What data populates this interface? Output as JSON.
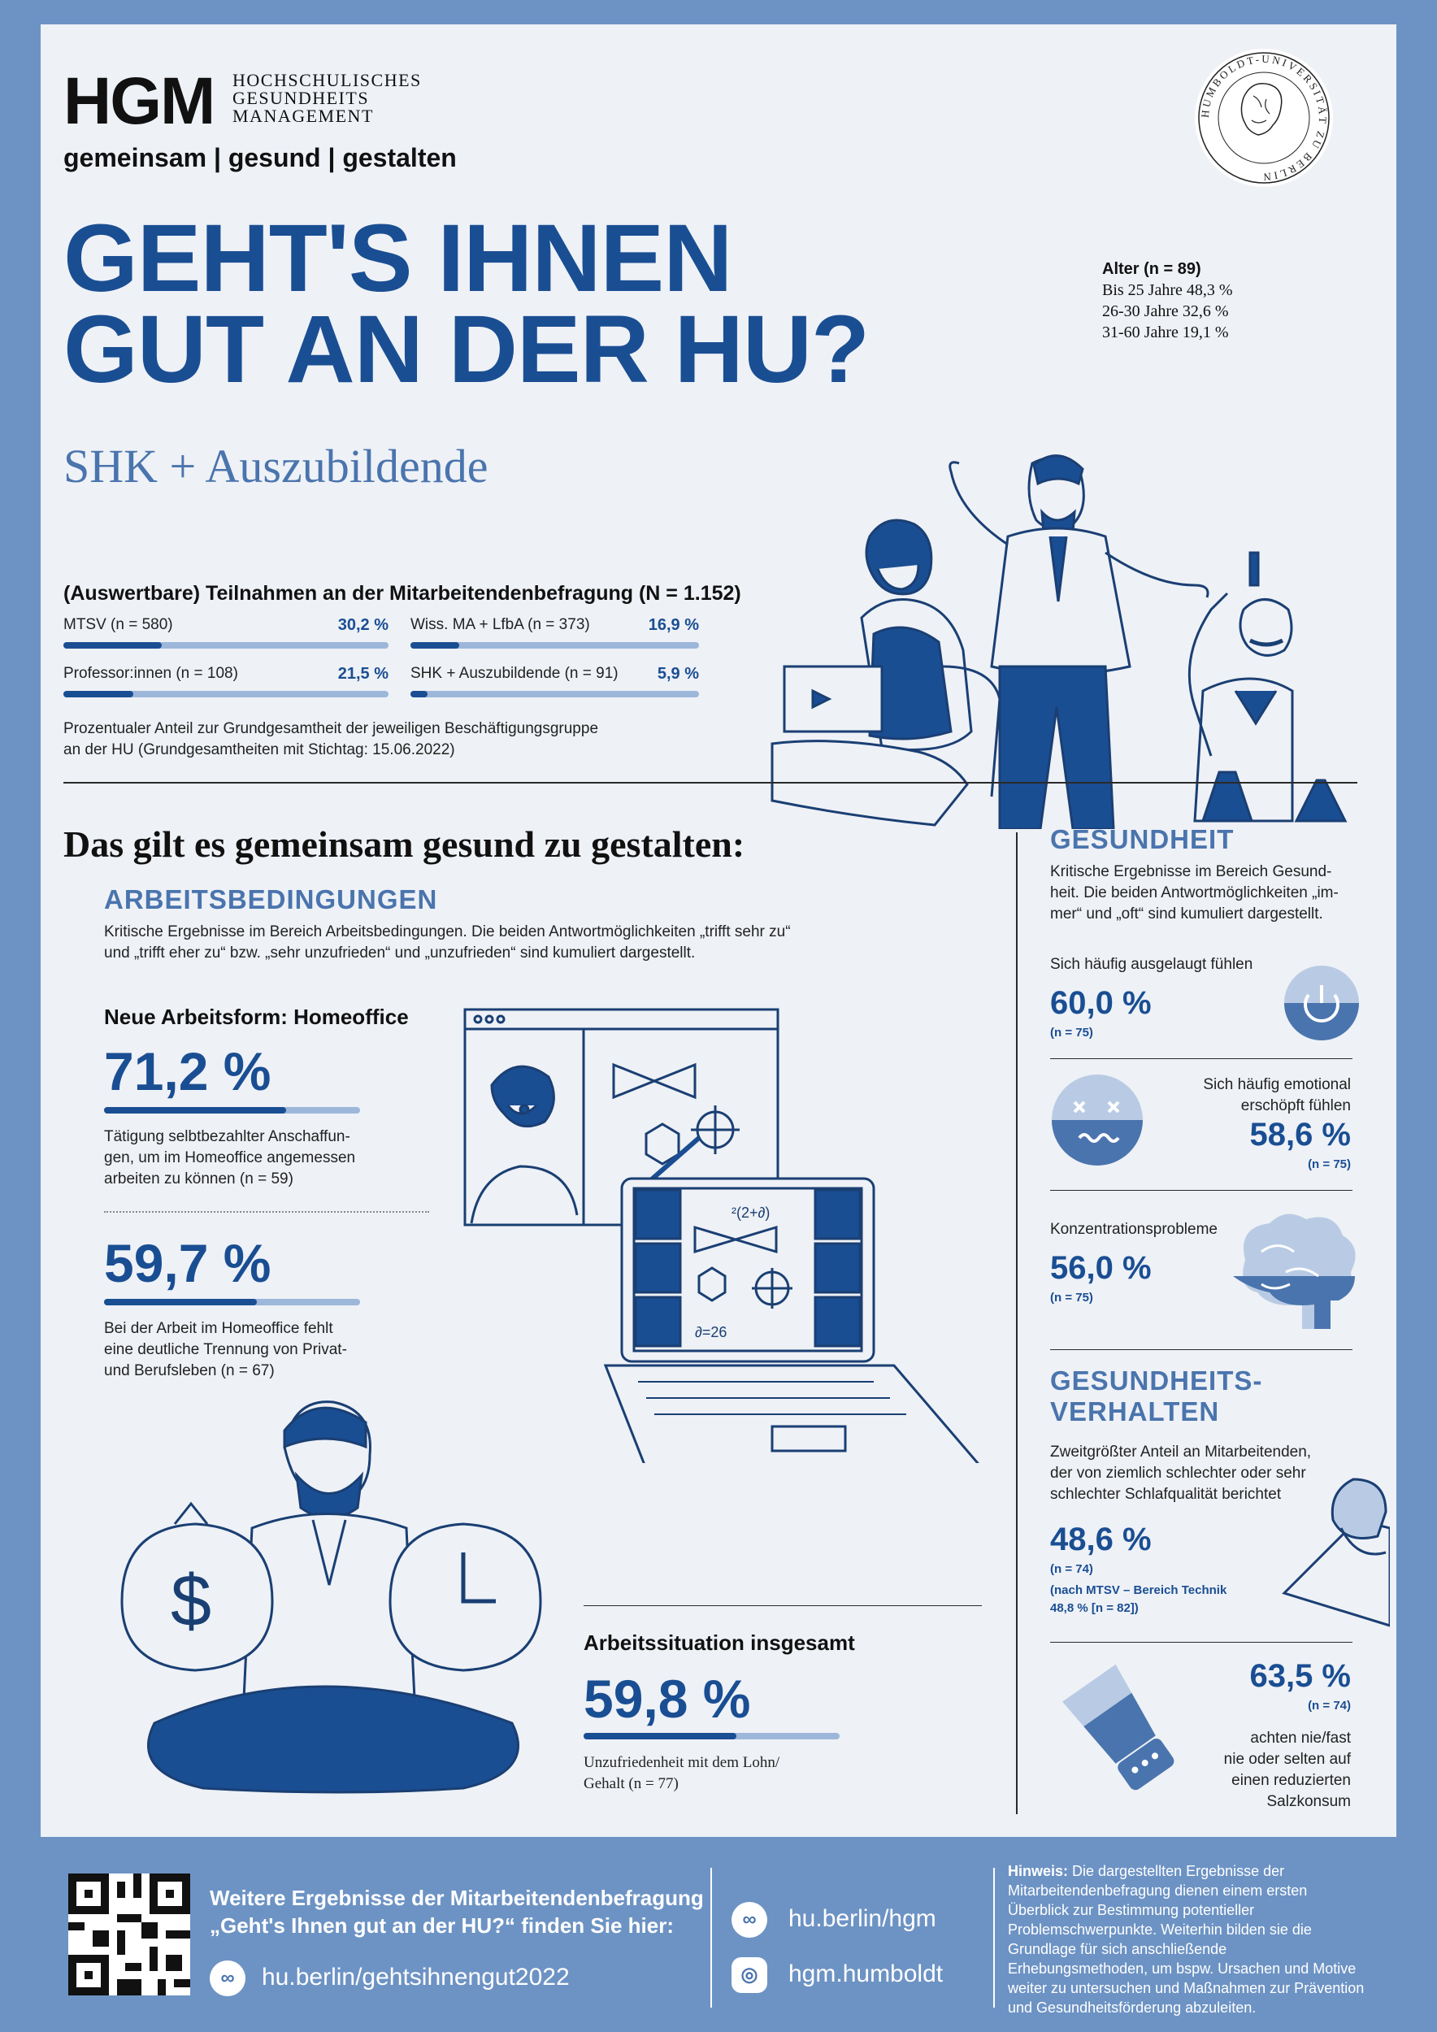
{
  "colors": {
    "primary": "#1a4e93",
    "secondary": "#4a74ad",
    "background": "#eef1f6",
    "frame": "#6d93c4"
  },
  "header": {
    "logo": "HGM",
    "logo_sub": [
      "HOCHSCHULISCHES",
      "GESUNDHEITS",
      "MANAGEMENT"
    ],
    "tagline": "gemeinsam | gesund | gestalten",
    "seal_text": "HUMBOLDT-UNIVERSITÄT ZU BERLIN"
  },
  "title": {
    "line1": "GEHT'S IHNEN",
    "line2": "GUT AN DER HU?",
    "subtitle": "SHK + Auszubildende"
  },
  "age": {
    "heading": "Alter (n = 89)",
    "rows": [
      "Bis 25 Jahre 48,3 %",
      "26-30 Jahre 32,6 %",
      "31-60 Jahre 19,1 %"
    ]
  },
  "participation": {
    "heading": "(Auswertbare) Teilnahmen an der Mitarbeitendenbefragung (N = 1.152)",
    "groups": [
      {
        "label": "MTSV (n = 580)",
        "pct": "30,2 %",
        "value": 30.2
      },
      {
        "label": "Wiss. MA + LfbA (n = 373)",
        "pct": "16,9 %",
        "value": 16.9
      },
      {
        "label": "Professor:innen (n = 108)",
        "pct": "21,5 %",
        "value": 21.5
      },
      {
        "label": "SHK + Auszubildende (n = 91)",
        "pct": "5,9 %",
        "value": 5.9
      }
    ],
    "note_line1": "Prozentualer Anteil zur Grundgesamtheit der jeweiligen Beschäftigungsgruppe",
    "note_line2": "an der HU (Grundgesamtheiten mit Stichtag: 15.06.2022)"
  },
  "section_title": "Das gilt es gemeinsam gesund zu gestalten:",
  "arbeit": {
    "heading": "ARBEITSBEDINGUNGEN",
    "text_line1": "Kritische Ergebnisse im Bereich Arbeitsbedingungen. Die beiden Antwortmöglichkeiten „trifft sehr zu“",
    "text_line2": "und „trifft eher zu“ bzw. „sehr unzufrieden“ und „unzufrieden“ sind kumuliert dargestellt.",
    "homeoffice_heading": "Neue Arbeitsform: Homeoffice",
    "item1": {
      "pct": "71,2 %",
      "value": 71.2,
      "desc": [
        "Tätigung selbtbezahlter Anschaffun-",
        "gen, um im Homeoffice angemessen",
        "arbeiten zu können (n = 59)"
      ]
    },
    "item2": {
      "pct": "59,7 %",
      "value": 59.7,
      "desc": [
        "Bei der Arbeit im Homeoffice fehlt",
        "eine deutliche Trennung von Privat-",
        "und Berufsleben (n = 67)"
      ]
    },
    "overall": {
      "heading": "Arbeitssituation insgesamt",
      "pct": "59,8 %",
      "value": 59.8,
      "desc": [
        "Unzufriedenheit mit dem Lohn/",
        "Gehalt (n = 77)"
      ]
    },
    "laptop_formula1": "²(2+∂)",
    "laptop_formula2": "∂=26"
  },
  "gesundheit": {
    "heading": "GESUNDHEIT",
    "text": [
      "Kritische Ergebnisse im Bereich Gesund-",
      "heit. Die beiden Antwortmöglichkeiten „im-",
      "mer“ und „oft“ sind kumuliert dargestellt."
    ],
    "items": [
      {
        "label": "Sich häufig ausgelaugt fühlen",
        "pct": "60,0 %",
        "n": "(n = 75)",
        "value": 60.0
      },
      {
        "label_line1": "Sich häufig emotional",
        "label_line2": "erschöpft fühlen",
        "pct": "58,6 %",
        "n": "(n = 75)",
        "value": 58.6
      },
      {
        "label": "Konzentrationsprobleme",
        "pct": "56,0 %",
        "n": "(n = 75)",
        "value": 56.0
      }
    ]
  },
  "verhalten": {
    "heading_line1": "GESUNDHEITS-",
    "heading_line2": "VERHALTEN",
    "sleep": {
      "text": [
        "Zweitgrößter Anteil an Mitarbeitenden,",
        "der von ziemlich schlechter oder sehr",
        "schlechter Schlafqualität berichtet"
      ],
      "pct": "48,6 %",
      "n": "(n = 74)",
      "note1": "(nach MTSV – Bereich Technik",
      "note2": "48,8 % [n = 82])"
    },
    "salt": {
      "pct": "63,5 %",
      "n": "(n = 74)",
      "text": [
        "achten nie/fast",
        "nie oder selten auf",
        "einen reduzierten",
        "Salzkonsum"
      ],
      "value": 63.5
    }
  },
  "footer": {
    "more_line1": "Weitere Ergebnisse der Mitarbeitendenbefragung",
    "more_line2": "„Geht's Ihnen gut an der HU?“ finden Sie hier:",
    "link_main": "hu.berlin/gehtsihnengut2022",
    "link_hgm": "hu.berlin/hgm",
    "instagram": "hgm.humboldt",
    "hint_label": "Hinweis:",
    "hint_text": "Die dargestellten Ergebnisse der Mitarbeitendenbefragung dienen einem ersten Überblick zur Bestimmung potentieller Problemschwerpunkte. Weiterhin bilden sie die Grundlage für sich anschließende Erhebungsmethoden, um bspw. Ursachen und Motive weiter zu untersuchen und Maßnahmen zur Prävention und Gesundheitsförderung abzuleiten."
  }
}
